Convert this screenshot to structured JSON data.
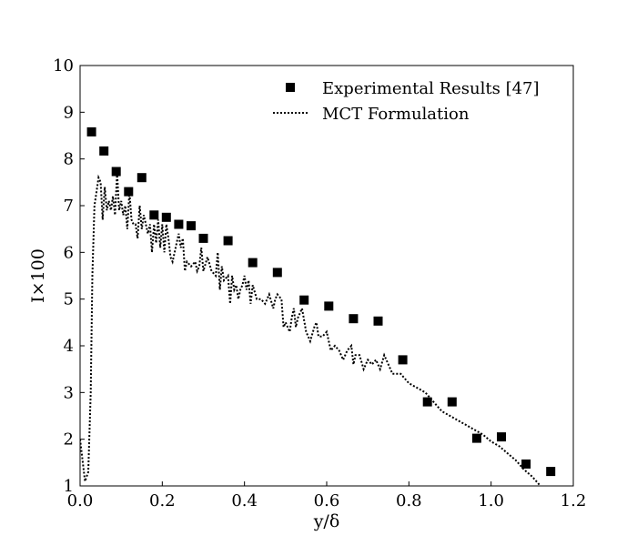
{
  "chart_data": {
    "type": "scatter",
    "title": "",
    "xlabel": "y/δ",
    "ylabel": "I×100",
    "xlim": [
      0,
      1.2
    ],
    "ylim": [
      1,
      10
    ],
    "x_ticks": [
      0.0,
      0.2,
      0.4,
      0.6,
      0.8,
      1.0,
      1.2
    ],
    "x_tick_labels": [
      "0.0",
      "0.2",
      "0.4",
      "0.6",
      "0.8",
      "1.0",
      "1.2"
    ],
    "y_ticks": [
      1,
      2,
      3,
      4,
      5,
      6,
      7,
      8,
      9,
      10
    ],
    "y_tick_labels": [
      "1",
      "2",
      "3",
      "4",
      "5",
      "6",
      "7",
      "8",
      "9",
      "10"
    ],
    "grid": false,
    "legend_position": "top-right",
    "series": [
      {
        "name": "Experimental Results [47]",
        "style": "square-markers",
        "color": "#000000",
        "x": [
          0.028,
          0.058,
          0.088,
          0.118,
          0.15,
          0.18,
          0.21,
          0.24,
          0.27,
          0.3,
          0.36,
          0.42,
          0.48,
          0.545,
          0.605,
          0.665,
          0.725,
          0.785,
          0.845,
          0.905,
          0.965,
          1.025,
          1.085,
          1.145
        ],
        "y": [
          8.58,
          8.17,
          7.73,
          7.3,
          7.6,
          6.8,
          6.75,
          6.6,
          6.57,
          6.3,
          6.25,
          5.78,
          5.57,
          4.98,
          4.85,
          4.58,
          4.53,
          3.7,
          2.8,
          2.8,
          2.02,
          2.05,
          1.47,
          1.31
        ]
      },
      {
        "name": "MCT Formulation",
        "style": "dotted-line",
        "color": "#000000",
        "x": [
          0.0,
          0.012,
          0.02,
          0.026,
          0.03,
          0.035,
          0.04,
          0.045,
          0.05,
          0.055,
          0.06,
          0.065,
          0.07,
          0.075,
          0.08,
          0.085,
          0.09,
          0.095,
          0.1,
          0.105,
          0.11,
          0.115,
          0.12,
          0.125,
          0.13,
          0.135,
          0.14,
          0.145,
          0.15,
          0.155,
          0.16,
          0.165,
          0.17,
          0.175,
          0.18,
          0.185,
          0.19,
          0.195,
          0.2,
          0.205,
          0.21,
          0.215,
          0.22,
          0.225,
          0.23,
          0.235,
          0.24,
          0.245,
          0.25,
          0.255,
          0.26,
          0.27,
          0.28,
          0.285,
          0.29,
          0.295,
          0.3,
          0.31,
          0.32,
          0.33,
          0.335,
          0.34,
          0.345,
          0.35,
          0.36,
          0.365,
          0.37,
          0.375,
          0.38,
          0.385,
          0.39,
          0.395,
          0.4,
          0.405,
          0.41,
          0.415,
          0.42,
          0.43,
          0.44,
          0.45,
          0.46,
          0.47,
          0.475,
          0.48,
          0.49,
          0.495,
          0.5,
          0.51,
          0.515,
          0.52,
          0.525,
          0.53,
          0.54,
          0.55,
          0.56,
          0.57,
          0.575,
          0.58,
          0.59,
          0.6,
          0.61,
          0.62,
          0.63,
          0.64,
          0.65,
          0.66,
          0.665,
          0.67,
          0.68,
          0.69,
          0.7,
          0.71,
          0.72,
          0.73,
          0.74,
          0.75,
          0.76,
          0.78,
          0.8,
          0.82,
          0.84,
          0.86,
          0.87,
          0.88,
          0.9,
          0.92,
          0.94,
          0.96,
          0.98,
          1.0,
          1.02,
          1.04,
          1.06,
          1.08,
          1.1,
          1.12
        ],
        "y": [
          2.0,
          1.1,
          1.3,
          3.0,
          5.5,
          7.0,
          7.3,
          7.6,
          7.5,
          6.7,
          7.4,
          6.9,
          7.1,
          6.9,
          7.2,
          6.8,
          7.7,
          6.9,
          7.1,
          6.8,
          7.0,
          6.5,
          7.3,
          6.7,
          6.6,
          6.6,
          6.3,
          7.0,
          6.5,
          6.8,
          6.6,
          6.4,
          6.6,
          6.0,
          6.6,
          6.2,
          6.7,
          6.1,
          6.6,
          6.0,
          6.6,
          6.3,
          5.9,
          5.8,
          6.0,
          6.2,
          6.4,
          6.1,
          6.3,
          5.6,
          5.8,
          5.7,
          5.8,
          5.6,
          5.7,
          6.1,
          5.6,
          5.9,
          5.6,
          5.5,
          6.0,
          5.2,
          5.7,
          5.4,
          5.5,
          4.9,
          5.5,
          5.2,
          5.3,
          5.0,
          5.2,
          5.3,
          5.5,
          5.2,
          5.4,
          4.9,
          5.3,
          5.0,
          5.0,
          4.9,
          5.1,
          4.8,
          5.0,
          5.1,
          5.0,
          4.4,
          4.5,
          4.3,
          4.6,
          4.8,
          4.4,
          4.6,
          4.8,
          4.3,
          4.1,
          4.4,
          4.5,
          4.2,
          4.2,
          4.3,
          3.9,
          4.0,
          3.9,
          3.7,
          3.9,
          4.0,
          3.6,
          3.8,
          3.8,
          3.5,
          3.7,
          3.6,
          3.7,
          3.5,
          3.8,
          3.6,
          3.4,
          3.4,
          3.2,
          3.1,
          3.0,
          2.8,
          2.7,
          2.6,
          2.5,
          2.4,
          2.3,
          2.2,
          2.1,
          1.95,
          1.85,
          1.7,
          1.55,
          1.35,
          1.2,
          1.0
        ]
      }
    ]
  }
}
